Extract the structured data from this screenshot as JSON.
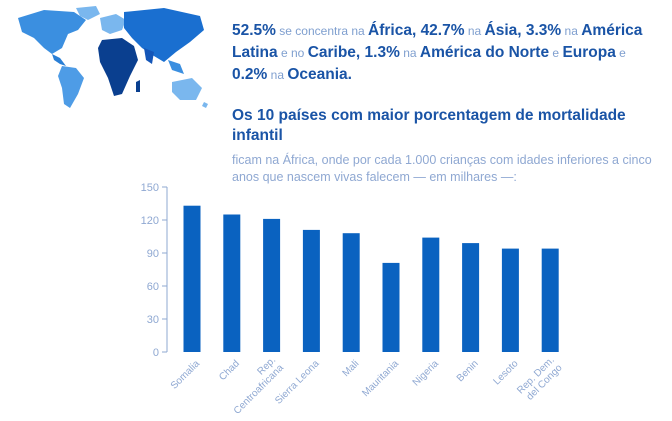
{
  "stats": {
    "parts": [
      {
        "t": "52.5%",
        "s": "b"
      },
      {
        "t": " se concentra na ",
        "s": "l"
      },
      {
        "t": "África, 42.7%",
        "s": "b"
      },
      {
        "t": " na ",
        "s": "l"
      },
      {
        "t": "Ásia, 3.3%",
        "s": "b"
      },
      {
        "t": " na ",
        "s": "l"
      },
      {
        "t": "América Latina",
        "s": "b"
      },
      {
        "t": " e no ",
        "s": "l"
      },
      {
        "t": "Caribe, 1.3%",
        "s": "b"
      },
      {
        "t": " na ",
        "s": "l"
      },
      {
        "t": "América do Norte",
        "s": "b"
      },
      {
        "t": " e ",
        "s": "l"
      },
      {
        "t": "Europa",
        "s": "b"
      },
      {
        "t": " e ",
        "s": "l"
      },
      {
        "t": "0.2%",
        "s": "b"
      },
      {
        "t": " na ",
        "s": "l"
      },
      {
        "t": "Oceania.",
        "s": "b"
      }
    ]
  },
  "heading": "Os 10 países com maior porcentagem de mortalidade infantil",
  "subheading": "ficam na África, onde por cada 1.000 crianças com idades inferiores a cinco anos que nascem vivas falecem — em milhares —:",
  "colors": {
    "bar": "#0a62c0",
    "accent": "#1a54a6",
    "light": "#8fa8d2"
  },
  "chart_data": {
    "type": "bar",
    "categories": [
      "Somalia",
      "Chad",
      "Rep. Centroafricana",
      "Sierra Leona",
      "Mali",
      "Mauritania",
      "Nigeria",
      "Benin",
      "Lesoto",
      "Rep. Dem. del Congo"
    ],
    "values": [
      133,
      125,
      121,
      111,
      108,
      81,
      104,
      99,
      94,
      94
    ],
    "yticks": [
      0,
      30,
      60,
      90,
      120,
      150
    ],
    "ylim": [
      0,
      150
    ],
    "title": "",
    "xlabel": "",
    "ylabel": ""
  }
}
